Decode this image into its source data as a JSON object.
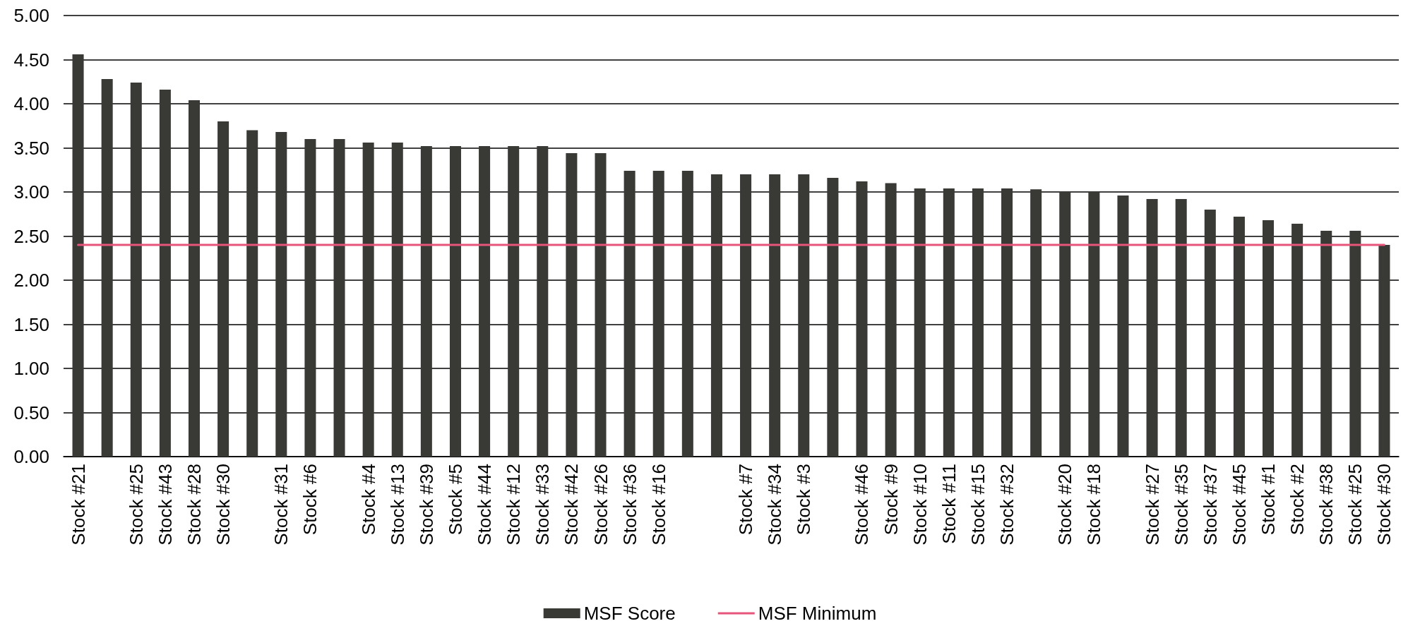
{
  "chart_data": {
    "type": "bar",
    "categories": [
      "Stock #21",
      null,
      "Stock #25",
      "Stock #43",
      "Stock #28",
      "Stock #30",
      null,
      "Stock #31",
      "Stock #6",
      null,
      "Stock #4",
      "Stock #13",
      "Stock #39",
      "Stock #5",
      "Stock #44",
      "Stock #12",
      "Stock #33",
      "Stock #42",
      "Stock #26",
      "Stock #36",
      "Stock #16",
      null,
      null,
      "Stock #7",
      "Stock #34",
      "Stock #3",
      null,
      "Stock #46",
      "Stock #9",
      "Stock #10",
      "Stock #11",
      "Stock #15",
      "Stock #32",
      null,
      "Stock #20",
      "Stock #18",
      null,
      "Stock #27",
      "Stock #35",
      "Stock #37",
      "Stock #45",
      "Stock #1",
      "Stock #2",
      "Stock #38",
      "Stock #25",
      "Stock #30"
    ],
    "series": [
      {
        "name": "MSF Score",
        "color": "#393a36",
        "values": [
          4.56,
          4.28,
          4.24,
          4.16,
          4.04,
          3.8,
          3.7,
          3.68,
          3.6,
          3.6,
          3.56,
          3.56,
          3.52,
          3.52,
          3.52,
          3.52,
          3.52,
          3.44,
          3.44,
          3.24,
          3.24,
          3.24,
          3.2,
          3.2,
          3.2,
          3.2,
          3.16,
          3.12,
          3.1,
          3.04,
          3.04,
          3.04,
          3.04,
          3.03,
          3.0,
          3.0,
          2.96,
          2.92,
          2.92,
          2.8,
          2.72,
          2.68,
          2.64,
          2.56,
          2.56,
          2.4
        ]
      },
      {
        "name": "MSF Minimum",
        "type": "line",
        "color": "#e8557a",
        "values": [
          2.4,
          2.4,
          2.4,
          2.4,
          2.4,
          2.4,
          2.4,
          2.4,
          2.4,
          2.4,
          2.4,
          2.4,
          2.4,
          2.4,
          2.4,
          2.4,
          2.4,
          2.4,
          2.4,
          2.4,
          2.4,
          2.4,
          2.4,
          2.4,
          2.4,
          2.4,
          2.4,
          2.4,
          2.4,
          2.4,
          2.4,
          2.4,
          2.4,
          2.4,
          2.4,
          2.4,
          2.4,
          2.4,
          2.4,
          2.4,
          2.4,
          2.4,
          2.4,
          2.4,
          2.4,
          2.4
        ]
      }
    ],
    "ylim": [
      0,
      5
    ],
    "yticks": [
      {
        "value": 0,
        "label": "0.00"
      },
      {
        "value": 0.5,
        "label": "0.50"
      },
      {
        "value": 1,
        "label": "1.00"
      },
      {
        "value": 1.5,
        "label": "1.50"
      },
      {
        "value": 2,
        "label": "2.00"
      },
      {
        "value": 2.5,
        "label": "2.50"
      },
      {
        "value": 3,
        "label": "3.00"
      },
      {
        "value": 3.5,
        "label": "3.50"
      },
      {
        "value": 4,
        "label": "4.00"
      },
      {
        "value": 4.5,
        "label": "4.50"
      },
      {
        "value": 5,
        "label": "5.00"
      }
    ],
    "grid": "y",
    "legend": "bottom",
    "marker": "none"
  }
}
